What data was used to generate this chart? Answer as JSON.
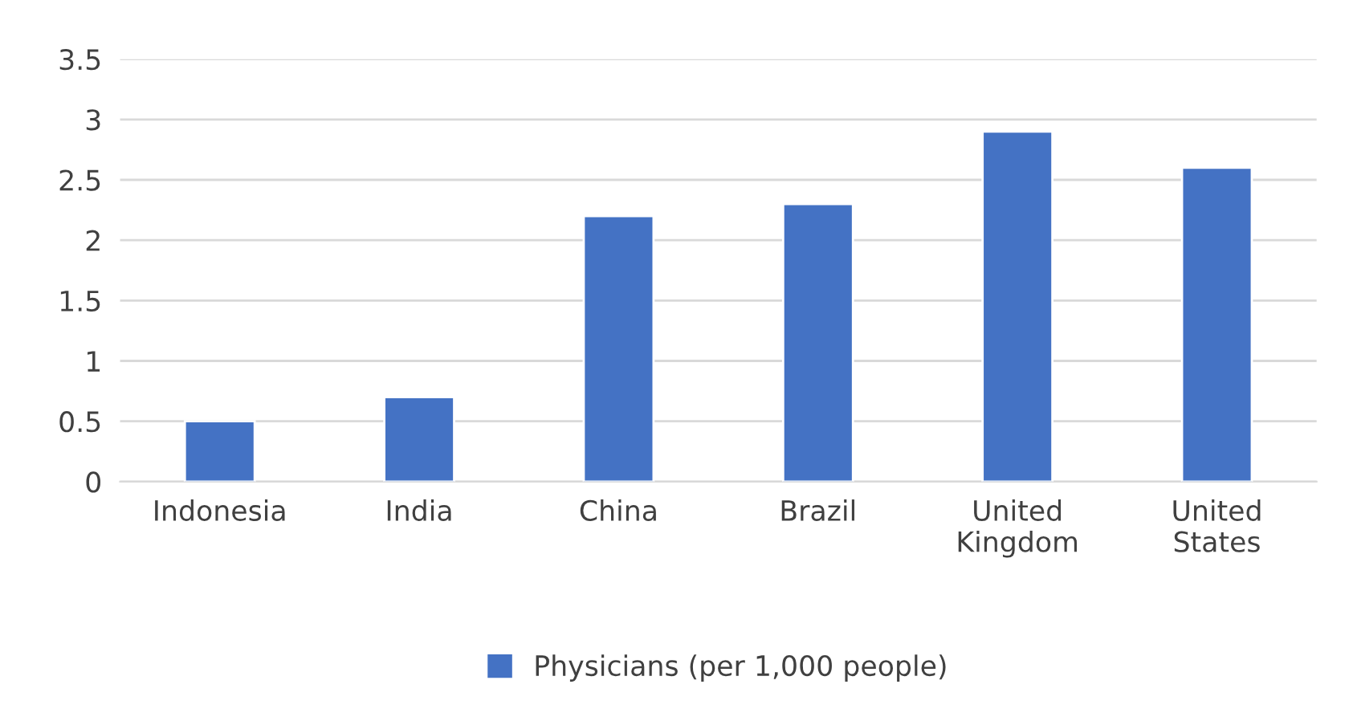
{
  "chart_data": {
    "type": "bar",
    "categories": [
      "Indonesia",
      "India",
      "China",
      "Brazil",
      "United Kingdom",
      "United States"
    ],
    "series": [
      {
        "name": "Physicians (per 1,000 people)",
        "color": "#4472c4",
        "values": [
          0.5,
          0.7,
          2.2,
          2.3,
          2.9,
          2.6
        ]
      }
    ],
    "ylim": [
      0,
      3.5
    ],
    "yticks": [
      0,
      0.5,
      1,
      1.5,
      2,
      2.5,
      3,
      3.5
    ],
    "grid": "y",
    "legend": "bottom"
  }
}
